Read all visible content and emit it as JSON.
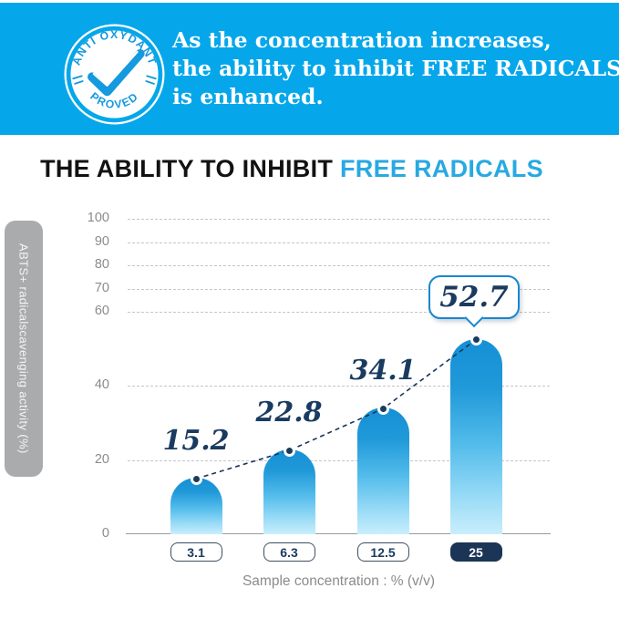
{
  "banner": {
    "badge": {
      "arc_top": "ANTI OXYDANT",
      "arc_bottom": "PROVED",
      "icon": "check-icon"
    },
    "lines": [
      "As the concentration increases,",
      "the ability to inhibit FREE RADICALS",
      "is enhanced."
    ]
  },
  "title": {
    "prefix": "THE ABILITY TO INHIBIT",
    "accent": "FREE RADICALS"
  },
  "chart_data": {
    "type": "bar",
    "title": "THE ABILITY TO INHIBIT FREE RADICALS",
    "categories": [
      "3.1",
      "6.3",
      "12.5",
      "25"
    ],
    "values": [
      15.2,
      22.8,
      34.1,
      52.7
    ],
    "highlight_index": 3,
    "highlight_style": "callout-bubble",
    "y_ticks": [
      0,
      20,
      40,
      60,
      70,
      80,
      90,
      100
    ],
    "ylim": [
      0,
      100
    ],
    "xlabel": "Sample concentration : % (v/v)",
    "ylabel": "ABTS+ radicalscavenging activity (%)",
    "grid": "horizontal-dashed",
    "trend_line": "dashed connector through bar-top dots",
    "legend": "none"
  },
  "colors": {
    "banner_bg": "#06a7ea",
    "accent_blue": "#29a9e1",
    "navy": "#1a3b60",
    "pill_navy": "#1b3556",
    "bar_top": "#1690d5",
    "bar_bottom": "#c9eefc",
    "tab_gray": "#aaabad"
  }
}
